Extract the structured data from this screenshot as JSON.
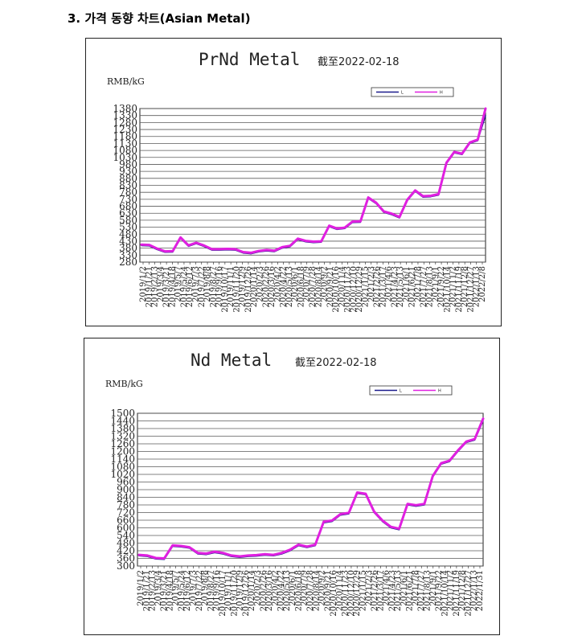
{
  "heading": "3. 가격 동향 차트(Asian Metal)",
  "colors": {
    "L": "#1a1a8c",
    "H": "#e020e0",
    "grid": "#5a5a5a",
    "plot_bg": "#ffffff"
  },
  "chart_data": [
    {
      "type": "line",
      "title": "PrNd Metal",
      "subtitle": "截至2022-02-18",
      "ylabel": "RMB/kG",
      "ylim": [
        280,
        1380
      ],
      "yticks": [
        280,
        330,
        380,
        430,
        480,
        530,
        580,
        630,
        680,
        730,
        780,
        830,
        880,
        930,
        980,
        1030,
        1080,
        1130,
        1180,
        1230,
        1280,
        1330,
        1380
      ],
      "grid": true,
      "legend_position": "top-right",
      "x_ticks": [
        "2019/1/2",
        "2019/1/21",
        "2019/2/13",
        "2019/3/4",
        "2019/3/21",
        "2019/4/18",
        "2019/5/7",
        "2019/5/24",
        "2019/6/12",
        "2019/7/3",
        "2019/7/22",
        "2019/8/8",
        "2019/8/27",
        "2019/9/16",
        "2019/10/17",
        "2019/11/1",
        "2019/11/20",
        "2019/12/9",
        "2019/12/26",
        "2020/1/14",
        "2020/2/3",
        "2020/2/26",
        "2020/3/16",
        "2020/4/2",
        "2020/4/22",
        "2020/5/13",
        "2020/6/1",
        "2020/6/18",
        "2020/7/9",
        "2020/7/28",
        "2020/8/14",
        "2020/9/2",
        "2020/9/21",
        "2020/10/16",
        "2020/11/4",
        "2020/11/23",
        "2020/12/10",
        "2020/12/29",
        "2021/1/15",
        "2021/2/3",
        "2021/2/26",
        "2021/3/17",
        "2021/4/6",
        "2021/4/23",
        "2021/5/13",
        "2021/6/1",
        "2021/6/21",
        "2021/7/8",
        "2021/7/27",
        "2021/8/13",
        "2021/9/1",
        "2021/9/22",
        "2021/10/14",
        "2021/11/2",
        "2021/11/19",
        "2021/12/8",
        "2021/12/27",
        "2022/1/13",
        "2022/2/8"
      ],
      "series": [
        {
          "name": "L",
          "values": [
            398,
            396,
            370,
            350,
            352,
            450,
            393,
            412,
            392,
            366,
            366,
            368,
            366,
            345,
            340,
            353,
            360,
            355,
            380,
            390,
            441,
            425,
            420,
            422,
            534,
            514,
            520,
            564,
            565,
            736,
            699,
            636,
            620,
            596,
            720,
            787,
            745,
            748,
            760,
            985,
            1062,
            1050,
            1130,
            1150,
            1330
          ]
        },
        {
          "name": "H",
          "values": [
            405,
            403,
            377,
            357,
            359,
            457,
            400,
            419,
            399,
            373,
            373,
            375,
            373,
            352,
            347,
            360,
            367,
            362,
            387,
            397,
            448,
            432,
            427,
            429,
            541,
            521,
            527,
            571,
            572,
            743,
            706,
            643,
            627,
            603,
            727,
            794,
            752,
            755,
            767,
            992,
            1069,
            1057,
            1137,
            1157,
            1380
          ]
        }
      ]
    },
    {
      "type": "line",
      "title": "Nd Metal",
      "subtitle": "截至2022-02-18",
      "ylabel": "RMB/kG",
      "ylim": [
        300,
        1500
      ],
      "yticks": [
        300,
        360,
        420,
        480,
        540,
        600,
        660,
        720,
        780,
        840,
        900,
        960,
        1020,
        1080,
        1140,
        1200,
        1260,
        1320,
        1380,
        1440,
        1500
      ],
      "grid": true,
      "legend_position": "top-right",
      "x_ticks": [
        "2019/1/2",
        "2019/1/21",
        "2019/2/13",
        "2019/3/4",
        "2019/3/21",
        "2019/4/18",
        "2019/5/7",
        "2019/5/24",
        "2019/6/12",
        "2019/7/3",
        "2019/7/22",
        "2019/8/8",
        "2019/8/27",
        "2019/9/16",
        "2019/10/17",
        "2019/11/1",
        "2019/11/20",
        "2019/12/9",
        "2019/12/26",
        "2020/1/14",
        "2020/2/3",
        "2020/2/26",
        "2020/3/16",
        "2020/4/2",
        "2020/4/22",
        "2020/5/13",
        "2020/6/1",
        "2020/6/18",
        "2020/7/9",
        "2020/7/28",
        "2020/8/14",
        "2020/9/2",
        "2020/9/21",
        "2020/10/16",
        "2020/11/4",
        "2020/11/23",
        "2020/12/10",
        "2020/12/29",
        "2021/1/15",
        "2021/2/3",
        "2021/2/26",
        "2021/3/17",
        "2021/4/6",
        "2021/4/23",
        "2021/5/13",
        "2021/6/1",
        "2021/6/21",
        "2021/7/8",
        "2021/7/27",
        "2021/8/13",
        "2021/9/1",
        "2021/9/22",
        "2021/10/14",
        "2021/11/2",
        "2021/11/19",
        "2021/12/8",
        "2021/12/27",
        "2022/1/13",
        "2022/1/31"
      ],
      "series": [
        {
          "name": "L",
          "values": [
            380,
            375,
            355,
            352,
            455,
            450,
            440,
            395,
            390,
            405,
            395,
            375,
            368,
            375,
            378,
            385,
            380,
            395,
            420,
            460,
            445,
            460,
            640,
            650,
            700,
            710,
            870,
            860,
            720,
            650,
            600,
            585,
            780,
            770,
            780,
            1000,
            1100,
            1120,
            1200,
            1270,
            1290,
            1440
          ]
        },
        {
          "name": "H",
          "values": [
            388,
            383,
            363,
            360,
            463,
            458,
            448,
            403,
            398,
            413,
            403,
            383,
            376,
            383,
            386,
            393,
            388,
            403,
            428,
            468,
            453,
            468,
            648,
            658,
            708,
            718,
            878,
            868,
            728,
            658,
            608,
            593,
            788,
            778,
            788,
            1008,
            1108,
            1128,
            1208,
            1278,
            1298,
            1458
          ]
        }
      ]
    }
  ]
}
